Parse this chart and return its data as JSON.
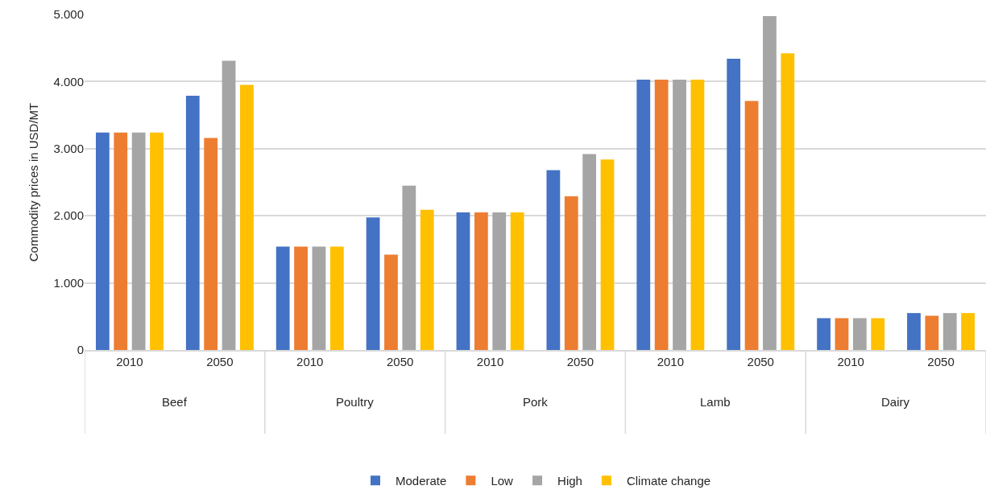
{
  "chart_data": {
    "type": "bar",
    "ylabel": "Commodity prices in USD/MT",
    "categories": [
      "2010",
      "2050",
      "2010",
      "2050",
      "2010",
      "2050",
      "2010",
      "2050",
      "2010",
      "2050"
    ],
    "annotations": [
      "Beef",
      "Poultry",
      "Pork",
      "Lamb",
      "Dairy"
    ],
    "series": [
      {
        "name": "Moderate",
        "color": "#4472c4",
        "values": [
          3240,
          3790,
          1540,
          1975,
          2050,
          2680,
          4030,
          4340,
          474,
          550
        ]
      },
      {
        "name": "Low",
        "color": "#ed7d31",
        "values": [
          3240,
          3160,
          1540,
          1420,
          2050,
          2290,
          4030,
          3710,
          474,
          510
        ]
      },
      {
        "name": "High",
        "color": "#a5a5a5",
        "values": [
          3240,
          4310,
          1540,
          2450,
          2050,
          2920,
          4030,
          4975,
          474,
          550
        ]
      },
      {
        "name": "Climate change",
        "color": "#ffc000",
        "values": [
          3240,
          3950,
          1540,
          2090,
          2050,
          2840,
          4030,
          4420,
          474,
          550
        ]
      }
    ],
    "ylim": [
      0,
      5000
    ],
    "yticks": [
      0,
      {
        "value": 1000,
        "label": "1.000"
      },
      {
        "value": 2000,
        "label": "2.000"
      },
      {
        "value": 3000,
        "label": "3.000"
      },
      {
        "value": 4000,
        "label": "4.000"
      },
      {
        "value": 5000,
        "label": "5.000"
      }
    ],
    "grid": "y",
    "legend": "bottom"
  }
}
